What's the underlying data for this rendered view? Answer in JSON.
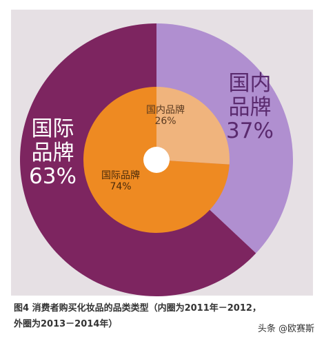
{
  "chart_data": {
    "type": "pie",
    "style": "nested-donut",
    "outer_ring": {
      "slices": [
        {
          "label_line1": "国内",
          "label_line2": "品牌",
          "value": 37,
          "percent_text": "37%",
          "color": "#b08fd0"
        },
        {
          "label_line1": "国际",
          "label_line2": "品牌",
          "value": 63,
          "percent_text": "63%",
          "color": "#7d2560"
        }
      ]
    },
    "inner_ring": {
      "slices": [
        {
          "label": "国内品牌",
          "value": 26,
          "percent_text": "26%",
          "color": "#f0b47d"
        },
        {
          "label": "国际品牌",
          "value": 74,
          "percent_text": "74%",
          "color": "#ee8a22"
        }
      ]
    },
    "caption_line1": "图4  消费者购买化妆品的品类类型（内圈为2011年－2012，",
    "caption_line2": "外圈为2013－2014年）"
  },
  "watermark": "头条 @欧赛斯",
  "colors": {
    "background_square": "#e6e0e4",
    "center_hole": "#ffffff"
  }
}
